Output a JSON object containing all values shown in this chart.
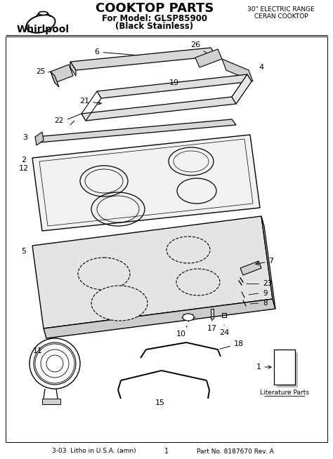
{
  "title": "COOKTOP PARTS",
  "subtitle1": "For Model: GLSP85900",
  "subtitle2": "(Black Stainless)",
  "top_right1": "30\" ELECTRIC RANGE",
  "top_right2": "CERAN COOKTOP",
  "bottom_left": "3-03  Litho in U.S.A. (amn)",
  "bottom_center": "1",
  "bottom_right": "Part No. 8187670 Rev. A",
  "literature_label": "Literature Parts",
  "bg_color": "#ffffff",
  "fig_width": 4.74,
  "fig_height": 6.54
}
